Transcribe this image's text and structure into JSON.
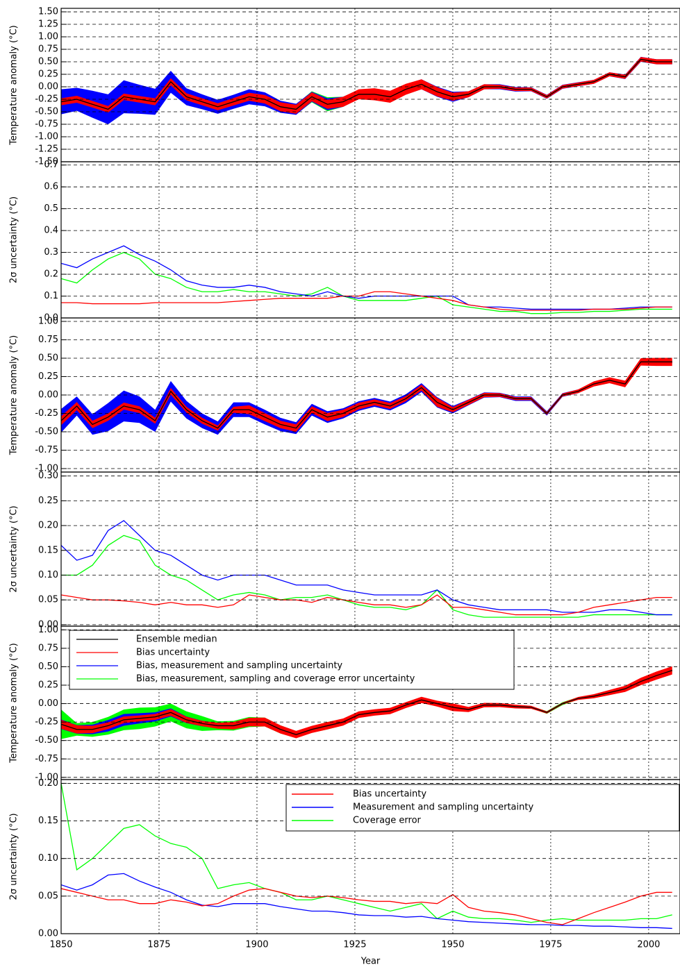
{
  "chart_data": [
    {
      "type": "line",
      "ylabel": "Temperature anomaly (°C)",
      "x": [
        1850,
        1854,
        1858,
        1862,
        1866,
        1870,
        1874,
        1878,
        1882,
        1886,
        1890,
        1894,
        1898,
        1902,
        1906,
        1910,
        1914,
        1918,
        1922,
        1926,
        1930,
        1934,
        1938,
        1942,
        1946,
        1950,
        1954,
        1958,
        1962,
        1966,
        1970,
        1974,
        1978,
        1982,
        1986,
        1990,
        1994,
        1998,
        2002,
        2006
      ],
      "xlim": [
        1850,
        2008
      ],
      "xticks": [
        1850,
        1875,
        1900,
        1925,
        1950,
        1975,
        2000
      ],
      "ylim": [
        -1.5,
        1.57
      ],
      "yticks": [
        {
          "value": 1.5,
          "label": "1.50"
        },
        {
          "value": 1.25,
          "label": "1.25"
        },
        {
          "value": 1,
          "label": "1.00"
        },
        {
          "value": 0.75,
          "label": "0.75"
        },
        {
          "value": 0.5,
          "label": "0.50"
        },
        {
          "value": 0.25,
          "label": "0.25"
        },
        {
          "value": 0,
          "label": "0.00"
        },
        {
          "value": -0.25,
          "label": "-0.25"
        },
        {
          "value": -0.5,
          "label": "-0.50"
        },
        {
          "value": -0.75,
          "label": "-0.75"
        },
        {
          "value": -1,
          "label": "-1.00"
        },
        {
          "value": -1.25,
          "label": "-1.25"
        },
        {
          "value": -1.5,
          "label": "-1.50"
        }
      ],
      "series": [
        {
          "color": "#000000",
          "values": [
            -0.3,
            -0.25,
            -0.35,
            -0.45,
            -0.2,
            -0.25,
            -0.3,
            0.1,
            -0.2,
            -0.3,
            -0.4,
            -0.3,
            -0.2,
            -0.25,
            -0.4,
            -0.45,
            -0.2,
            -0.35,
            -0.3,
            -0.15,
            -0.15,
            -0.2,
            -0.05,
            0.05,
            -0.1,
            -0.2,
            -0.15,
            0.0,
            0.0,
            -0.05,
            -0.05,
            -0.2,
            0.0,
            0.05,
            0.1,
            0.25,
            0.2,
            0.55,
            0.5,
            0.5
          ]
        }
      ]
    },
    {
      "type": "line",
      "ylabel": "2σ uncertainty (°C)",
      "x": [
        1850,
        1854,
        1858,
        1862,
        1866,
        1870,
        1874,
        1878,
        1882,
        1886,
        1890,
        1894,
        1898,
        1902,
        1906,
        1910,
        1914,
        1918,
        1922,
        1926,
        1930,
        1934,
        1938,
        1942,
        1946,
        1950,
        1954,
        1958,
        1962,
        1966,
        1970,
        1974,
        1978,
        1982,
        1986,
        1990,
        1994,
        1998,
        2002,
        2006
      ],
      "xlim": [
        1850,
        2008
      ],
      "xticks": [
        1850,
        1875,
        1900,
        1925,
        1950,
        1975,
        2000
      ],
      "ylim": [
        0,
        0.715
      ],
      "yticks": [
        {
          "value": 0,
          "label": "0.0"
        },
        0.1,
        0.2,
        0.3,
        0.4,
        0.5,
        0.6,
        0.7
      ],
      "series": [
        {
          "color": "#ff0000",
          "values": [
            0.07,
            0.07,
            0.065,
            0.065,
            0.065,
            0.065,
            0.07,
            0.07,
            0.07,
            0.07,
            0.07,
            0.075,
            0.08,
            0.085,
            0.09,
            0.09,
            0.09,
            0.09,
            0.1,
            0.1,
            0.12,
            0.12,
            0.11,
            0.1,
            0.09,
            0.08,
            0.06,
            0.05,
            0.04,
            0.035,
            0.035,
            0.035,
            0.035,
            0.035,
            0.04,
            0.04,
            0.04,
            0.045,
            0.05,
            0.05
          ]
        },
        {
          "color": "#0000ff",
          "values": [
            0.25,
            0.23,
            0.27,
            0.3,
            0.33,
            0.29,
            0.26,
            0.22,
            0.17,
            0.15,
            0.14,
            0.14,
            0.15,
            0.14,
            0.12,
            0.11,
            0.1,
            0.12,
            0.1,
            0.09,
            0.1,
            0.1,
            0.1,
            0.1,
            0.1,
            0.1,
            0.06,
            0.05,
            0.05,
            0.045,
            0.04,
            0.04,
            0.04,
            0.04,
            0.04,
            0.04,
            0.045,
            0.05,
            0.05,
            0.05
          ]
        },
        {
          "color": "#00ff00",
          "values": [
            0.18,
            0.16,
            0.22,
            0.27,
            0.3,
            0.27,
            0.2,
            0.18,
            0.14,
            0.12,
            0.12,
            0.13,
            0.12,
            0.12,
            0.11,
            0.1,
            0.11,
            0.14,
            0.1,
            0.08,
            0.08,
            0.08,
            0.08,
            0.09,
            0.1,
            0.06,
            0.05,
            0.04,
            0.03,
            0.03,
            0.02,
            0.02,
            0.025,
            0.025,
            0.03,
            0.03,
            0.035,
            0.04,
            0.04,
            0.04
          ]
        }
      ]
    },
    {
      "type": "line",
      "ylabel": "Temperature anomaly (°C)",
      "x": [
        1850,
        1854,
        1858,
        1862,
        1866,
        1870,
        1874,
        1878,
        1882,
        1886,
        1890,
        1894,
        1898,
        1902,
        1906,
        1910,
        1914,
        1918,
        1922,
        1926,
        1930,
        1934,
        1938,
        1942,
        1946,
        1950,
        1954,
        1958,
        1962,
        1966,
        1970,
        1974,
        1978,
        1982,
        1986,
        1990,
        1994,
        1998,
        2002,
        2006
      ],
      "xlim": [
        1850,
        2008
      ],
      "xticks": [
        1850,
        1875,
        1900,
        1925,
        1950,
        1975,
        2000
      ],
      "ylim": [
        -1.047,
        1.047
      ],
      "yticks": [
        {
          "value": 1,
          "label": "1.00"
        },
        {
          "value": 0.75,
          "label": "0.75"
        },
        {
          "value": 0.5,
          "label": "0.50"
        },
        {
          "value": 0.25,
          "label": "0.25"
        },
        {
          "value": 0,
          "label": "0.00"
        },
        {
          "value": -0.25,
          "label": "-0.25"
        },
        {
          "value": -0.5,
          "label": "-0.50"
        },
        {
          "value": -0.75,
          "label": "-0.75"
        },
        {
          "value": -1,
          "label": "-1.00"
        }
      ],
      "series": [
        {
          "color": "#000000",
          "values": [
            -0.35,
            -0.15,
            -0.4,
            -0.3,
            -0.15,
            -0.2,
            -0.35,
            0.05,
            -0.2,
            -0.35,
            -0.45,
            -0.2,
            -0.2,
            -0.3,
            -0.4,
            -0.45,
            -0.2,
            -0.3,
            -0.25,
            -0.15,
            -0.1,
            -0.15,
            -0.05,
            0.1,
            -0.1,
            -0.2,
            -0.1,
            0.0,
            0.0,
            -0.05,
            -0.05,
            -0.25,
            0.0,
            0.05,
            0.15,
            0.2,
            0.15,
            0.45,
            0.45,
            0.45
          ]
        }
      ]
    },
    {
      "type": "line",
      "ylabel": "2σ uncertainty (°C)",
      "x": [
        1850,
        1854,
        1858,
        1862,
        1866,
        1870,
        1874,
        1878,
        1882,
        1886,
        1890,
        1894,
        1898,
        1902,
        1906,
        1910,
        1914,
        1918,
        1922,
        1926,
        1930,
        1934,
        1938,
        1942,
        1946,
        1950,
        1954,
        1958,
        1962,
        1966,
        1970,
        1974,
        1978,
        1982,
        1986,
        1990,
        1994,
        1998,
        2002,
        2006
      ],
      "xlim": [
        1850,
        2008
      ],
      "xticks": [
        1850,
        1875,
        1900,
        1925,
        1950,
        1975,
        2000
      ],
      "ylim": [
        -0.003,
        0.308
      ],
      "yticks": [
        {
          "value": 0,
          "label": "0.00"
        },
        {
          "value": 0.05,
          "label": "0.05"
        },
        {
          "value": 0.1,
          "label": "0.10"
        },
        {
          "value": 0.15,
          "label": "0.15"
        },
        {
          "value": 0.2,
          "label": "0.20"
        },
        {
          "value": 0.25,
          "label": "0.25"
        },
        {
          "value": 0.3,
          "label": "0.30"
        }
      ],
      "series": [
        {
          "color": "#ff0000",
          "values": [
            0.06,
            0.055,
            0.05,
            0.05,
            0.048,
            0.045,
            0.04,
            0.045,
            0.04,
            0.04,
            0.035,
            0.04,
            0.06,
            0.055,
            0.05,
            0.05,
            0.045,
            0.055,
            0.05,
            0.045,
            0.04,
            0.04,
            0.035,
            0.04,
            0.06,
            0.035,
            0.035,
            0.03,
            0.025,
            0.02,
            0.02,
            0.02,
            0.02,
            0.025,
            0.035,
            0.04,
            0.045,
            0.05,
            0.055,
            0.055
          ]
        },
        {
          "color": "#0000ff",
          "values": [
            0.16,
            0.13,
            0.14,
            0.19,
            0.21,
            0.18,
            0.15,
            0.14,
            0.12,
            0.1,
            0.09,
            0.1,
            0.1,
            0.1,
            0.09,
            0.08,
            0.08,
            0.08,
            0.07,
            0.065,
            0.06,
            0.06,
            0.06,
            0.06,
            0.07,
            0.05,
            0.04,
            0.035,
            0.03,
            0.03,
            0.03,
            0.03,
            0.025,
            0.025,
            0.025,
            0.03,
            0.03,
            0.025,
            0.02,
            0.02
          ]
        },
        {
          "color": "#00ff00",
          "values": [
            0.1,
            0.1,
            0.12,
            0.16,
            0.18,
            0.17,
            0.12,
            0.1,
            0.09,
            0.07,
            0.05,
            0.06,
            0.065,
            0.06,
            0.05,
            0.055,
            0.055,
            0.06,
            0.05,
            0.04,
            0.035,
            0.035,
            0.03,
            0.04,
            0.07,
            0.03,
            0.02,
            0.015,
            0.015,
            0.015,
            0.015,
            0.015,
            0.015,
            0.015,
            0.02,
            0.02,
            0.02,
            0.02,
            0.02,
            0.02
          ]
        }
      ]
    },
    {
      "type": "line",
      "ylabel": "Temperature anomaly (°C)",
      "x": [
        1850,
        1854,
        1858,
        1862,
        1866,
        1870,
        1874,
        1878,
        1882,
        1886,
        1890,
        1894,
        1898,
        1902,
        1906,
        1910,
        1914,
        1918,
        1922,
        1926,
        1930,
        1934,
        1938,
        1942,
        1946,
        1950,
        1954,
        1958,
        1962,
        1966,
        1970,
        1974,
        1978,
        1982,
        1986,
        1990,
        1994,
        1998,
        2002,
        2006
      ],
      "xlim": [
        1850,
        2008
      ],
      "xticks": [
        1850,
        1875,
        1900,
        1925,
        1950,
        1975,
        2000
      ],
      "ylim": [
        -1.03,
        1.05
      ],
      "yticks": [
        {
          "value": 1,
          "label": "1.00"
        },
        {
          "value": 0.75,
          "label": "0.75"
        },
        {
          "value": 0.5,
          "label": "0.50"
        },
        {
          "value": 0.25,
          "label": "0.25"
        },
        {
          "value": 0,
          "label": "0.00"
        },
        {
          "value": -0.25,
          "label": "-0.25"
        },
        {
          "value": -0.5,
          "label": "-0.50"
        },
        {
          "value": -0.75,
          "label": "-0.75"
        },
        {
          "value": -1,
          "label": "-1.00"
        }
      ],
      "series": [
        {
          "color": "#000000",
          "values": [
            -0.28,
            -0.35,
            -0.35,
            -0.3,
            -0.22,
            -0.2,
            -0.18,
            -0.12,
            -0.22,
            -0.27,
            -0.3,
            -0.3,
            -0.25,
            -0.25,
            -0.35,
            -0.42,
            -0.35,
            -0.3,
            -0.25,
            -0.15,
            -0.12,
            -0.1,
            -0.02,
            0.05,
            0.0,
            -0.05,
            -0.08,
            -0.02,
            -0.02,
            -0.04,
            -0.05,
            -0.12,
            0.0,
            0.07,
            0.1,
            0.15,
            0.2,
            0.3,
            0.38,
            0.45
          ]
        }
      ],
      "legend_entries": [
        {
          "name": "Ensemble median",
          "color": "#000000"
        },
        {
          "name": "Bias uncertainty",
          "color": "#ff0000"
        },
        {
          "name": "Bias, measurement and sampling uncertainty",
          "color": "#0000ff"
        },
        {
          "name": "Bias, measurement, sampling and coverage error uncertainty",
          "color": "#00ff00"
        }
      ]
    },
    {
      "type": "line",
      "ylabel": "2σ uncertainty (°C)",
      "xlabel": "Year",
      "x": [
        1850,
        1854,
        1858,
        1862,
        1866,
        1870,
        1874,
        1878,
        1882,
        1886,
        1890,
        1894,
        1898,
        1902,
        1906,
        1910,
        1914,
        1918,
        1922,
        1926,
        1930,
        1934,
        1938,
        1942,
        1946,
        1950,
        1954,
        1958,
        1962,
        1966,
        1970,
        1974,
        1978,
        1982,
        1986,
        1990,
        1994,
        1998,
        2002,
        2006
      ],
      "xlim": [
        1850,
        2008
      ],
      "xticks": [
        1850,
        1875,
        1900,
        1925,
        1950,
        1975,
        2000
      ],
      "ylim": [
        0,
        0.205
      ],
      "yticks": [
        {
          "value": 0,
          "label": "0.00"
        },
        {
          "value": 0.05,
          "label": "0.05"
        },
        {
          "value": 0.1,
          "label": "0.10"
        },
        {
          "value": 0.15,
          "label": "0.15"
        },
        {
          "value": 0.2,
          "label": "0.20"
        }
      ],
      "series": [
        {
          "name": "Bias uncertainty",
          "color": "#ff0000",
          "values": [
            0.06,
            0.055,
            0.05,
            0.045,
            0.045,
            0.04,
            0.04,
            0.045,
            0.042,
            0.037,
            0.04,
            0.05,
            0.058,
            0.06,
            0.055,
            0.05,
            0.048,
            0.05,
            0.048,
            0.045,
            0.043,
            0.043,
            0.04,
            0.042,
            0.04,
            0.052,
            0.035,
            0.03,
            0.028,
            0.025,
            0.02,
            0.015,
            0.012,
            0.02,
            0.028,
            0.035,
            0.042,
            0.05,
            0.055,
            0.055
          ]
        },
        {
          "name": "Measurement and sampling uncertainty",
          "color": "#0000ff",
          "values": [
            0.065,
            0.058,
            0.065,
            0.078,
            0.08,
            0.07,
            0.062,
            0.055,
            0.045,
            0.038,
            0.036,
            0.04,
            0.04,
            0.04,
            0.036,
            0.033,
            0.03,
            0.03,
            0.028,
            0.025,
            0.024,
            0.024,
            0.022,
            0.023,
            0.02,
            0.018,
            0.016,
            0.015,
            0.014,
            0.013,
            0.012,
            0.012,
            0.011,
            0.011,
            0.01,
            0.01,
            0.009,
            0.008,
            0.008,
            0.007
          ]
        },
        {
          "name": "Coverage error",
          "color": "#00ff00",
          "values": [
            0.2,
            0.085,
            0.1,
            0.12,
            0.14,
            0.145,
            0.13,
            0.12,
            0.115,
            0.1,
            0.06,
            0.065,
            0.068,
            0.06,
            0.055,
            0.045,
            0.045,
            0.05,
            0.045,
            0.04,
            0.035,
            0.03,
            0.035,
            0.04,
            0.02,
            0.03,
            0.022,
            0.02,
            0.02,
            0.018,
            0.015,
            0.018,
            0.02,
            0.018,
            0.018,
            0.018,
            0.018,
            0.02,
            0.02,
            0.025
          ]
        }
      ]
    }
  ]
}
